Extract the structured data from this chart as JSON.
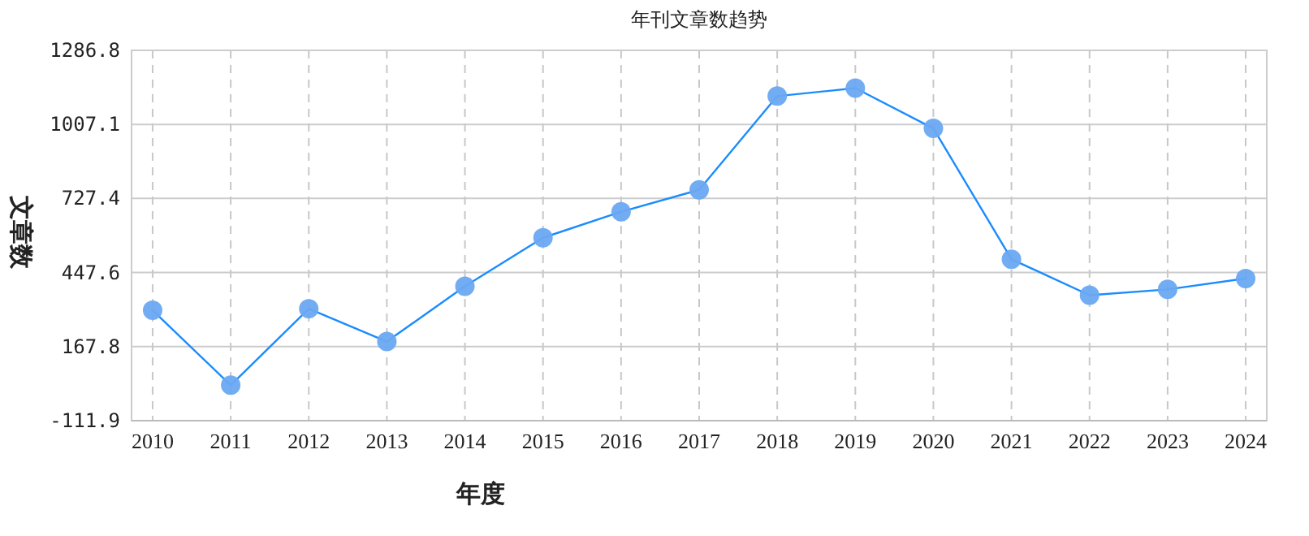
{
  "chart_data": {
    "type": "line",
    "title": "年刊文章数趋势",
    "xlabel": "年度",
    "ylabel": "文章数",
    "categories": [
      "2010",
      "2011",
      "2012",
      "2013",
      "2014",
      "2015",
      "2016",
      "2017",
      "2018",
      "2019",
      "2020",
      "2021",
      "2022",
      "2023",
      "2024"
    ],
    "series": [
      {
        "color": "#1a8cff",
        "values": [
          305,
          22,
          311,
          187,
          396,
          579,
          677,
          760,
          1114,
          1144,
          992,
          498,
          362,
          384,
          425
        ]
      }
    ],
    "ylim": [
      -111.9,
      1286.8
    ],
    "yticks": [
      -111.9,
      167.8,
      447.6,
      727.4,
      1007.1,
      1286.8
    ],
    "grid": true,
    "marker": "circle",
    "line_style": "solid"
  }
}
